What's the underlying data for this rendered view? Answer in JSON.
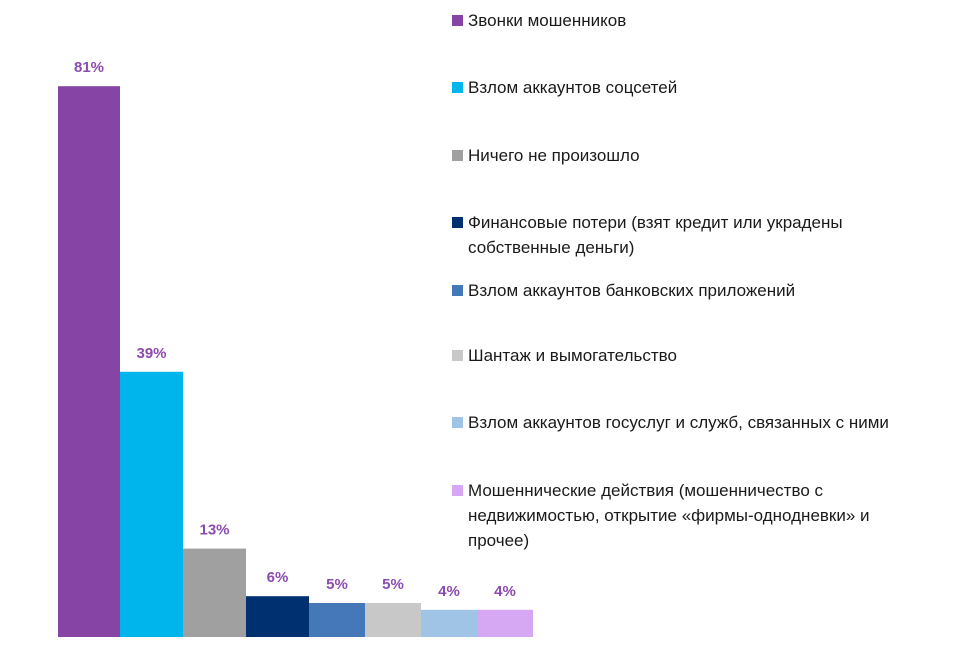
{
  "chart_data": {
    "type": "bar",
    "categories": [
      "Звонки мошенников",
      "Взлом аккаунтов соцсетей",
      "Ничего не произошло",
      "Финансовые потери (взят кредит или украдены собственные деньги)",
      "Взлом аккаунтов банковских приложений",
      "Шантаж и вымогательство",
      "Взлом аккаунтов госуслуг и служб, связанных с ними",
      "Мошеннические действия (мошенничество с недвижимостью, открытие «фирмы-однодневки» и прочее)"
    ],
    "values": [
      81,
      39,
      13,
      6,
      5,
      5,
      4,
      4
    ],
    "value_labels": [
      "81%",
      "39%",
      "13%",
      "6%",
      "5%",
      "5%",
      "4%",
      "4%"
    ],
    "colors": [
      "#8645a4",
      "#00b4ec",
      "#a0a0a0",
      "#003070",
      "#4578b8",
      "#c8c8c8",
      "#a0c4e6",
      "#d6a8f4"
    ],
    "legend": "right"
  }
}
